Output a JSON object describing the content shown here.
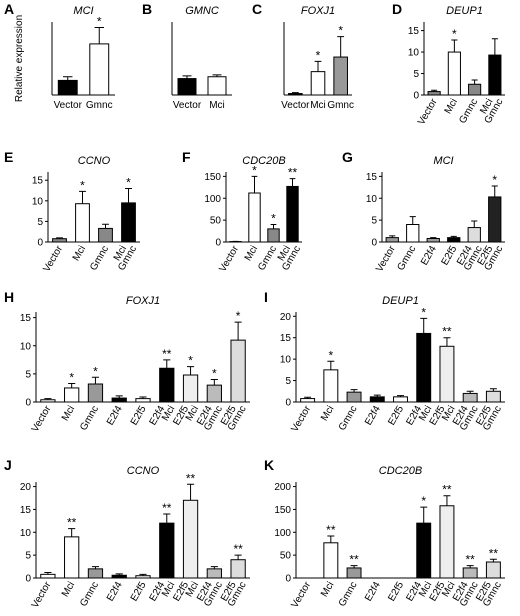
{
  "chart_data": [
    {
      "type": "bar",
      "panel_label": "A",
      "title": "MCI",
      "y_label": "Relative expression",
      "categories": [
        "Vector",
        "Gmnc"
      ],
      "values": [
        0.8,
        2.8
      ],
      "errors": [
        0.2,
        0.9
      ],
      "significance": [
        null,
        "*"
      ],
      "colors": [
        "#000000",
        "#ffffff"
      ],
      "ylim": [
        0,
        4
      ]
    },
    {
      "type": "bar",
      "panel_label": "B",
      "title": "GMNC",
      "categories": [
        "Vector",
        "Mci"
      ],
      "values": [
        0.9,
        1.0
      ],
      "errors": [
        0.15,
        0.1
      ],
      "significance": [
        null,
        null
      ],
      "colors": [
        "#000000",
        "#ffffff"
      ],
      "ylim": [
        0,
        4
      ]
    },
    {
      "type": "bar",
      "panel_label": "C",
      "title": "FOXJ1",
      "categories": [
        "Vector",
        "Mci",
        "Gmnc"
      ],
      "values": [
        0.5,
        8,
        13
      ],
      "errors": [
        0.3,
        3.5,
        7
      ],
      "significance": [
        null,
        "*",
        "*"
      ],
      "colors": [
        "#000000",
        "#ffffff",
        "#999999"
      ],
      "ylim": [
        0,
        25
      ]
    },
    {
      "type": "bar",
      "panel_label": "D",
      "title": "DEUP1",
      "categories": [
        "Vector",
        "Mci",
        "Gmnc",
        [
          "Mci",
          "Gmnc"
        ]
      ],
      "values": [
        0.8,
        10,
        2.5,
        9.3
      ],
      "errors": [
        0.3,
        2.8,
        1,
        3.8
      ],
      "significance": [
        null,
        "*",
        null,
        null
      ],
      "colors": [
        "#888888",
        "#ffffff",
        "#888888",
        "#000000"
      ],
      "ylim": [
        0,
        17
      ],
      "yticks": [
        0,
        5,
        10,
        15
      ]
    },
    {
      "type": "bar",
      "panel_label": "E",
      "title": "CCNO",
      "categories": [
        "Vector",
        "Mci",
        "Gmnc",
        [
          "Mci",
          "Gmnc"
        ]
      ],
      "values": [
        0.8,
        9.3,
        3.3,
        9.5
      ],
      "errors": [
        0.2,
        3,
        1,
        3.5
      ],
      "significance": [
        null,
        "*",
        null,
        "*"
      ],
      "colors": [
        "#888888",
        "#ffffff",
        "#888888",
        "#000000"
      ],
      "ylim": [
        0,
        17
      ],
      "yticks": [
        0,
        5,
        10,
        15
      ]
    },
    {
      "type": "bar",
      "panel_label": "F",
      "title": "CDC20B",
      "categories": [
        "Vector",
        "Mci",
        "Gmnc",
        [
          "Mci",
          "Gmnc"
        ]
      ],
      "values": [
        1,
        112,
        30,
        127
      ],
      "errors": [
        0.5,
        38,
        10,
        18
      ],
      "significance": [
        null,
        "*",
        "*",
        "**"
      ],
      "colors": [
        "#888888",
        "#ffffff",
        "#888888",
        "#000000"
      ],
      "ylim": [
        0,
        160
      ],
      "yticks": [
        0,
        50,
        100,
        150
      ]
    },
    {
      "type": "bar",
      "panel_label": "G",
      "title": "MCI",
      "categories": [
        "Vector",
        "Gmnc",
        "E2f4",
        "E2f5",
        [
          "E2f4",
          "Gmnc"
        ],
        [
          "E2f5",
          "Gmnc"
        ]
      ],
      "values": [
        1,
        4,
        0.8,
        1,
        3.3,
        10.3
      ],
      "errors": [
        0.4,
        1.8,
        0.2,
        0.3,
        1.5,
        2.5
      ],
      "significance": [
        null,
        null,
        null,
        null,
        null,
        "*"
      ],
      "colors": [
        "#999999",
        "#ffffff",
        "#999999",
        "#000000",
        "#dddddd",
        "#222222"
      ],
      "ylim": [
        0,
        16
      ],
      "yticks": [
        0,
        5,
        10,
        15
      ]
    },
    {
      "type": "bar",
      "panel_label": "H",
      "title": "FOXJ1",
      "categories": [
        "Vector",
        "Mci",
        "Gmnc",
        "E2f4",
        "E2f5",
        [
          "E2f4",
          "Mci"
        ],
        [
          "E2f5",
          "Mci"
        ],
        [
          "E2f4",
          "Gmnc"
        ],
        [
          "E2f5",
          "Gmnc"
        ]
      ],
      "values": [
        0.4,
        2.5,
        3.2,
        0.7,
        0.6,
        6,
        4.8,
        3,
        11
      ],
      "errors": [
        0.2,
        0.8,
        1.2,
        0.4,
        0.3,
        1.5,
        1.5,
        1,
        3.2
      ],
      "significance": [
        null,
        "*",
        "*",
        null,
        null,
        "**",
        "*",
        "*",
        "*"
      ],
      "colors": [
        "#ffffff",
        "#ffffff",
        "#999999",
        "#000000",
        "#ffffff",
        "#000000",
        "#eeeeee",
        "#bbbbbb",
        "#dddddd"
      ],
      "ylim": [
        0,
        16
      ],
      "yticks": [
        0,
        5,
        10,
        15
      ]
    },
    {
      "type": "bar",
      "panel_label": "I",
      "title": "DEUP1",
      "categories": [
        "Vector",
        "Mci",
        "Gmnc",
        "E2f4",
        "E2f5",
        [
          "E2f4",
          "Mci"
        ],
        [
          "E2f5",
          "Mci"
        ],
        [
          "E2f4",
          "Gmnc"
        ],
        [
          "E2f5",
          "Gmnc"
        ]
      ],
      "values": [
        0.8,
        7.5,
        2.3,
        1.2,
        1.2,
        16,
        13,
        2,
        2.5
      ],
      "errors": [
        0.3,
        2,
        0.6,
        0.4,
        0.3,
        3.5,
        2,
        0.5,
        0.6
      ],
      "significance": [
        null,
        "*",
        null,
        null,
        null,
        "*",
        "**",
        null,
        null
      ],
      "colors": [
        "#ffffff",
        "#ffffff",
        "#999999",
        "#000000",
        "#ffffff",
        "#000000",
        "#eeeeee",
        "#bbbbbb",
        "#dddddd"
      ],
      "ylim": [
        0,
        21
      ],
      "yticks": [
        0,
        5,
        10,
        15,
        20
      ]
    },
    {
      "type": "bar",
      "panel_label": "J",
      "title": "CCNO",
      "categories": [
        "Vector",
        "Mci",
        "Gmnc",
        "E2f4",
        "E2f5",
        [
          "E2f4",
          "Mci"
        ],
        [
          "E2f5",
          "Mci"
        ],
        [
          "E2f4",
          "Gmnc"
        ],
        [
          "E2f5",
          "Gmnc"
        ]
      ],
      "values": [
        0.8,
        9,
        2,
        0.6,
        0.5,
        12,
        17,
        2,
        4
      ],
      "errors": [
        0.4,
        1.8,
        0.5,
        0.3,
        0.3,
        2,
        3.5,
        0.5,
        1
      ],
      "significance": [
        null,
        "**",
        null,
        null,
        null,
        "**",
        "**",
        null,
        "**"
      ],
      "colors": [
        "#ffffff",
        "#ffffff",
        "#999999",
        "#000000",
        "#ffffff",
        "#000000",
        "#eeeeee",
        "#bbbbbb",
        "#dddddd"
      ],
      "ylim": [
        0,
        21
      ],
      "yticks": [
        0,
        5,
        10,
        15,
        20
      ]
    },
    {
      "type": "bar",
      "panel_label": "K",
      "title": "CDC20B",
      "categories": [
        "Vector",
        "Mci",
        "Gmnc",
        "E2f4",
        "E2f5",
        [
          "E2f4",
          "Mci"
        ],
        [
          "E2f5",
          "Mci"
        ],
        [
          "E2f4",
          "Gmnc"
        ],
        [
          "E2f5",
          "Gmnc"
        ]
      ],
      "values": [
        0,
        77,
        22,
        0,
        0,
        120,
        158,
        22,
        35
      ],
      "errors": [
        0,
        15,
        5,
        0,
        0,
        35,
        22,
        5,
        6
      ],
      "significance": [
        null,
        "**",
        "**",
        null,
        null,
        "*",
        "**",
        "**",
        "**"
      ],
      "colors": [
        "#ffffff",
        "#ffffff",
        "#999999",
        "#000000",
        "#ffffff",
        "#000000",
        "#eeeeee",
        "#bbbbbb",
        "#dddddd"
      ],
      "ylim": [
        0,
        210
      ],
      "yticks": [
        0,
        50,
        100,
        150,
        200
      ]
    }
  ]
}
